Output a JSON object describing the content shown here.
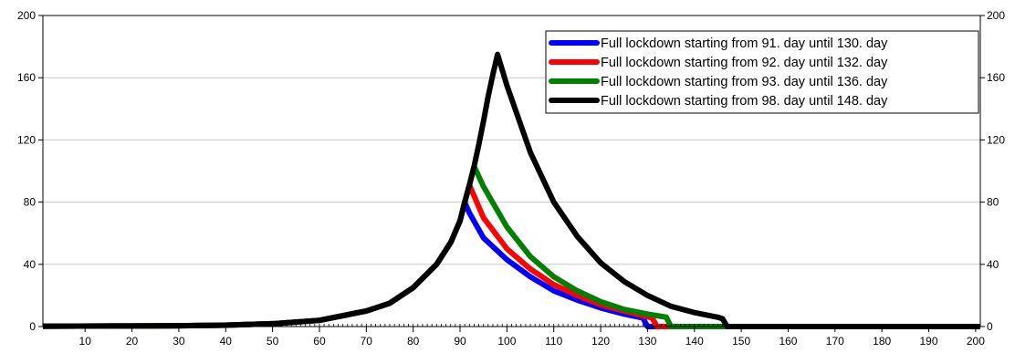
{
  "chart_data": {
    "type": "line",
    "title": "",
    "xlabel": "",
    "ylabel": "",
    "xlim": [
      1,
      201
    ],
    "ylim": [
      0,
      200
    ],
    "y_ticks": [
      0,
      40,
      80,
      120,
      160,
      200
    ],
    "y_axis_sides": "left and right",
    "x_ticks": [
      10,
      20,
      30,
      40,
      50,
      60,
      70,
      80,
      90,
      100,
      110,
      120,
      130,
      140,
      150,
      160,
      170,
      180,
      190,
      200
    ],
    "grid": "horizontal",
    "legend_position": "top-right",
    "series": [
      {
        "name": "Full lockdown starting from 91. day until 130. day",
        "color": "#0000ff",
        "points": [
          [
            1,
            0.2
          ],
          [
            20,
            0.4
          ],
          [
            30,
            0.5
          ],
          [
            40,
            0.9
          ],
          [
            50,
            1.8
          ],
          [
            60,
            4
          ],
          [
            70,
            10
          ],
          [
            75,
            15
          ],
          [
            80,
            25
          ],
          [
            85,
            40
          ],
          [
            88,
            54
          ],
          [
            90,
            68
          ],
          [
            91,
            80
          ],
          [
            92,
            73
          ],
          [
            95,
            57
          ],
          [
            100,
            43
          ],
          [
            105,
            32
          ],
          [
            110,
            23
          ],
          [
            115,
            17
          ],
          [
            120,
            12
          ],
          [
            125,
            8
          ],
          [
            129,
            5.5
          ],
          [
            130,
            0
          ],
          [
            201,
            0
          ]
        ]
      },
      {
        "name": "Full lockdown starting from 92. day until 132. day",
        "color": "#ff0000",
        "points": [
          [
            1,
            0.2
          ],
          [
            20,
            0.4
          ],
          [
            30,
            0.5
          ],
          [
            40,
            0.9
          ],
          [
            50,
            1.8
          ],
          [
            60,
            4
          ],
          [
            70,
            10
          ],
          [
            75,
            15
          ],
          [
            80,
            25
          ],
          [
            85,
            40
          ],
          [
            88,
            54
          ],
          [
            90,
            68
          ],
          [
            91,
            80
          ],
          [
            92,
            91
          ],
          [
            93,
            84
          ],
          [
            95,
            70
          ],
          [
            100,
            50
          ],
          [
            105,
            37
          ],
          [
            110,
            27
          ],
          [
            115,
            20
          ],
          [
            120,
            14
          ],
          [
            125,
            10
          ],
          [
            131,
            5.5
          ],
          [
            132,
            0
          ],
          [
            201,
            0
          ]
        ]
      },
      {
        "name": "Full lockdown starting from 93. day until 136. day",
        "color": "#008000",
        "points": [
          [
            1,
            0.2
          ],
          [
            20,
            0.4
          ],
          [
            30,
            0.5
          ],
          [
            40,
            0.9
          ],
          [
            50,
            1.8
          ],
          [
            60,
            4
          ],
          [
            70,
            10
          ],
          [
            75,
            15
          ],
          [
            80,
            25
          ],
          [
            85,
            40
          ],
          [
            88,
            54
          ],
          [
            90,
            68
          ],
          [
            91,
            80
          ],
          [
            92,
            91
          ],
          [
            93,
            103
          ],
          [
            95,
            90
          ],
          [
            100,
            64
          ],
          [
            105,
            45
          ],
          [
            110,
            32
          ],
          [
            115,
            23
          ],
          [
            120,
            16
          ],
          [
            125,
            11
          ],
          [
            130,
            8
          ],
          [
            134,
            6
          ],
          [
            135,
            0
          ],
          [
            201,
            0
          ]
        ]
      },
      {
        "name": "Full lockdown starting from 98. day until 148. day",
        "color": "#000000",
        "points": [
          [
            1,
            0.2
          ],
          [
            20,
            0.4
          ],
          [
            30,
            0.5
          ],
          [
            40,
            0.9
          ],
          [
            50,
            1.8
          ],
          [
            60,
            4
          ],
          [
            70,
            10
          ],
          [
            75,
            15
          ],
          [
            80,
            25
          ],
          [
            85,
            40
          ],
          [
            88,
            54
          ],
          [
            90,
            68
          ],
          [
            91,
            80
          ],
          [
            92,
            91
          ],
          [
            93,
            103
          ],
          [
            94,
            117
          ],
          [
            95,
            132
          ],
          [
            96,
            148
          ],
          [
            97,
            162
          ],
          [
            98,
            175
          ],
          [
            100,
            155
          ],
          [
            105,
            112
          ],
          [
            110,
            80
          ],
          [
            115,
            58
          ],
          [
            120,
            41
          ],
          [
            125,
            29
          ],
          [
            130,
            20
          ],
          [
            135,
            13
          ],
          [
            140,
            9
          ],
          [
            145,
            6
          ],
          [
            146,
            5
          ],
          [
            147,
            0
          ],
          [
            201,
            0
          ]
        ]
      }
    ]
  }
}
